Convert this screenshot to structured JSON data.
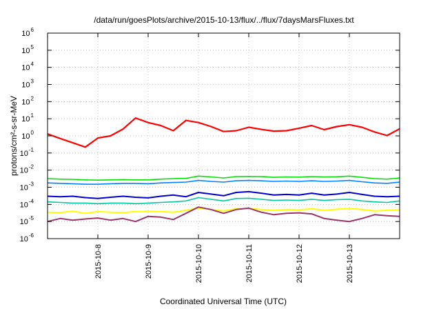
{
  "chart_data": {
    "type": "line",
    "title": "/data/run/goesPlots/archive/2015-10-13/flux/../flux/7daysMarsFluxes.txt",
    "xlabel": "Coordinated Universal Time (UTC)",
    "ylabel": "protons/cm²-s-sr-MeV",
    "y_scale": "log",
    "ylim": [
      1e-06,
      1000000.0
    ],
    "y_ticks": [
      {
        "base": "10",
        "exp": "-6"
      },
      {
        "base": "10",
        "exp": "-5"
      },
      {
        "base": "10",
        "exp": "-4"
      },
      {
        "base": "10",
        "exp": "-3"
      },
      {
        "base": "10",
        "exp": "-2"
      },
      {
        "base": "10",
        "exp": "-1"
      },
      {
        "base": "10",
        "exp": "0"
      },
      {
        "base": "10",
        "exp": "1"
      },
      {
        "base": "10",
        "exp": "2"
      },
      {
        "base": "10",
        "exp": "3"
      },
      {
        "base": "10",
        "exp": "4"
      },
      {
        "base": "10",
        "exp": "5"
      },
      {
        "base": "10",
        "exp": "6"
      }
    ],
    "xlim": [
      "2015-10-07T00:00",
      "2015-10-14T00:00"
    ],
    "x_ticks": [
      "2015-10-8",
      "2015-10-9",
      "2015-10-10",
      "2015-10-11",
      "2015-10-12",
      "2015-10-13"
    ],
    "grid": true,
    "x": [
      "2015-10-07T00:00",
      "2015-10-07T06:00",
      "2015-10-07T12:00",
      "2015-10-07T18:00",
      "2015-10-08T00:00",
      "2015-10-08T06:00",
      "2015-10-08T12:00",
      "2015-10-08T18:00",
      "2015-10-09T00:00",
      "2015-10-09T06:00",
      "2015-10-09T12:00",
      "2015-10-09T18:00",
      "2015-10-10T00:00",
      "2015-10-10T06:00",
      "2015-10-10T12:00",
      "2015-10-10T18:00",
      "2015-10-11T00:00",
      "2015-10-11T06:00",
      "2015-10-11T12:00",
      "2015-10-11T18:00",
      "2015-10-12T00:00",
      "2015-10-12T06:00",
      "2015-10-12T12:00",
      "2015-10-12T18:00",
      "2015-10-13T00:00",
      "2015-10-13T06:00",
      "2015-10-13T12:00",
      "2015-10-13T18:00",
      "2015-10-14T00:00"
    ],
    "series": [
      {
        "color": "#ff0000",
        "width": 2.2,
        "values": [
          1.3,
          0.7,
          0.4,
          0.22,
          0.75,
          1.0,
          2.5,
          11,
          6,
          4,
          2.0,
          8,
          6,
          3.5,
          1.8,
          2.0,
          3.2,
          2.4,
          1.9,
          2.0,
          2.8,
          4.0,
          2.3,
          3.5,
          4.5,
          3.2,
          1.7,
          1.05,
          2.6
        ]
      },
      {
        "color": "#00e000",
        "width": 1.6,
        "values": [
          0.0032,
          0.003,
          0.0029,
          0.0027,
          0.0026,
          0.0027,
          0.0028,
          0.0027,
          0.0027,
          0.003,
          0.0032,
          0.0033,
          0.0045,
          0.004,
          0.0035,
          0.0042,
          0.0043,
          0.0042,
          0.0038,
          0.004,
          0.0039,
          0.0042,
          0.004,
          0.0041,
          0.0045,
          0.0038,
          0.0032,
          0.003,
          0.0035
        ]
      },
      {
        "color": "#0080ff",
        "width": 1.6,
        "values": [
          0.0018,
          0.0017,
          0.0016,
          0.0015,
          0.0015,
          0.0016,
          0.0017,
          0.0017,
          0.0016,
          0.0018,
          0.0019,
          0.002,
          0.0025,
          0.0022,
          0.002,
          0.0024,
          0.0025,
          0.0024,
          0.0022,
          0.0023,
          0.0022,
          0.0024,
          0.0022,
          0.0023,
          0.0025,
          0.0021,
          0.0018,
          0.0017,
          0.002
        ]
      },
      {
        "color": "#0000cc",
        "width": 2.0,
        "values": [
          0.0003,
          0.00028,
          0.0003,
          0.00025,
          0.00022,
          0.00026,
          0.0003,
          0.00026,
          0.00024,
          0.0003,
          0.00035,
          0.00028,
          0.0005,
          0.0004,
          0.00032,
          0.0005,
          0.00055,
          0.00045,
          0.00035,
          0.00038,
          0.00035,
          0.00045,
          0.00035,
          0.0004,
          0.0005,
          0.00038,
          0.0003,
          0.00028,
          0.0003
        ]
      },
      {
        "color": "#00c8a0",
        "width": 1.6,
        "values": [
          0.00014,
          0.00013,
          0.00012,
          0.00012,
          0.00011,
          0.00012,
          0.00012,
          0.00011,
          0.00012,
          0.00013,
          0.00014,
          0.00016,
          0.00025,
          0.0002,
          0.00016,
          0.00022,
          0.00023,
          0.0002,
          0.00017,
          0.00018,
          0.00017,
          0.0002,
          0.00017,
          0.00019,
          0.0002,
          0.00016,
          0.00014,
          0.00013,
          0.00016
        ]
      },
      {
        "color": "#ffff00",
        "width": 2.0,
        "values": [
          3.5e-05,
          3.3e-05,
          4e-05,
          3e-05,
          3.8e-05,
          3.5e-05,
          3.3e-05,
          3.8e-05,
          4e-05,
          3.8e-05,
          3.5e-05,
          4.5e-05,
          6e-05,
          5e-05,
          4.2e-05,
          5.5e-05,
          5.8e-05,
          5e-05,
          4.5e-05,
          5e-05,
          4.8e-05,
          5.5e-05,
          4.5e-05,
          5.2e-05,
          5.8e-05,
          5e-05,
          4.2e-05,
          4.5e-05,
          4.8e-05
        ]
      },
      {
        "color": "#993366",
        "width": 2.0,
        "values": [
          1e-05,
          1.5e-05,
          1.2e-05,
          1.4e-05,
          1.6e-05,
          1.2e-05,
          1.5e-05,
          1e-05,
          2e-05,
          1.8e-05,
          1.3e-05,
          3e-05,
          7e-05,
          5e-05,
          3e-05,
          5e-05,
          6e-05,
          3.5e-05,
          2.5e-05,
          3e-05,
          3.2e-05,
          2.8e-05,
          1.5e-05,
          1.2e-05,
          1e-05,
          1.5e-05,
          2.5e-05,
          2.2e-05,
          2e-05
        ]
      }
    ]
  }
}
